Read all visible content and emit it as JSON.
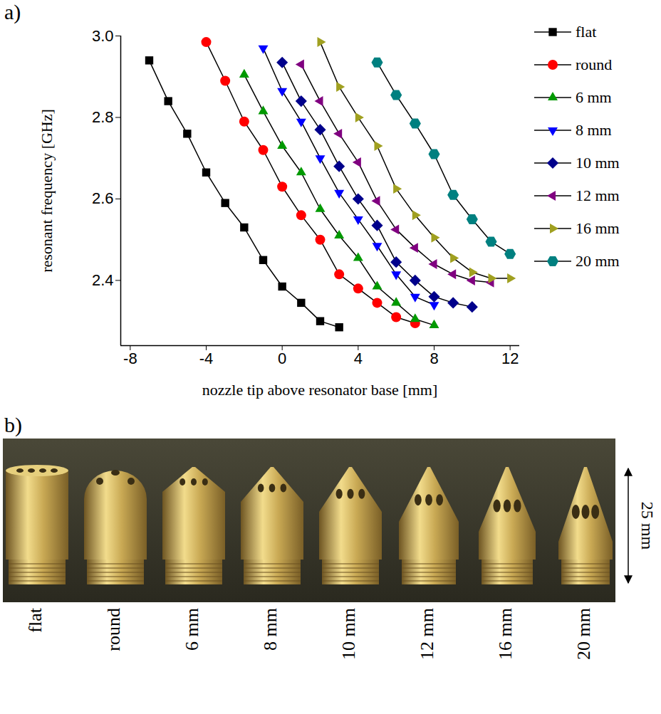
{
  "chart_data": {
    "type": "line",
    "panel_label": "a)",
    "xlabel": "nozzle tip above resonator base [mm]",
    "ylabel": "resonant frequency [GHz]",
    "xlim": [
      -8.5,
      12.5
    ],
    "xticks": [
      -8,
      -4,
      0,
      4,
      8,
      12
    ],
    "ylim": [
      2.24,
      3.0
    ],
    "yticks": [
      2.4,
      2.6,
      2.8,
      {
        "value": 3.0,
        "label": "3.0"
      }
    ],
    "grid": false,
    "legend": "right",
    "line_style": "solid",
    "series": [
      {
        "name": "flat",
        "color": "#000000",
        "marker": "square",
        "x": [
          -7,
          -6,
          -5,
          -4,
          -3,
          -2,
          -1,
          0,
          1,
          2,
          3
        ],
        "values": [
          2.94,
          2.84,
          2.76,
          2.665,
          2.59,
          2.53,
          2.45,
          2.385,
          2.345,
          2.3,
          2.285
        ]
      },
      {
        "name": "round",
        "color": "#ff0000",
        "marker": "circle",
        "x": [
          -4,
          -3,
          -2,
          -1,
          0,
          1,
          2,
          3,
          4,
          5,
          6,
          7
        ],
        "values": [
          2.985,
          2.89,
          2.79,
          2.72,
          2.63,
          2.56,
          2.5,
          2.415,
          2.38,
          2.345,
          2.31,
          2.295
        ]
      },
      {
        "name": "6 mm",
        "color": "#009900",
        "marker": "triangle-up",
        "x": [
          -2,
          -1,
          0,
          1,
          2,
          3,
          4,
          5,
          6,
          7,
          8
        ],
        "values": [
          2.905,
          2.815,
          2.73,
          2.665,
          2.575,
          2.51,
          2.455,
          2.385,
          2.345,
          2.305,
          2.29
        ]
      },
      {
        "name": "8 mm",
        "color": "#0000ff",
        "marker": "triangle-down",
        "x": [
          -1,
          0,
          1,
          2,
          3,
          4,
          5,
          6,
          7,
          8
        ],
        "values": [
          2.97,
          2.865,
          2.79,
          2.7,
          2.615,
          2.55,
          2.485,
          2.415,
          2.36,
          2.34
        ]
      },
      {
        "name": "10 mm",
        "color": "#00008b",
        "marker": "diamond",
        "x": [
          0,
          1,
          2,
          3,
          4,
          5,
          6,
          7,
          8,
          9,
          10
        ],
        "values": [
          2.935,
          2.84,
          2.77,
          2.68,
          2.6,
          2.535,
          2.445,
          2.4,
          2.36,
          2.345,
          2.335
        ]
      },
      {
        "name": "12 mm",
        "color": "#800080",
        "marker": "triangle-left",
        "x": [
          1,
          2,
          3,
          4,
          5,
          6,
          7,
          8,
          9,
          10,
          11
        ],
        "values": [
          2.93,
          2.84,
          2.76,
          2.69,
          2.595,
          2.525,
          2.48,
          2.44,
          2.415,
          2.4,
          2.395
        ]
      },
      {
        "name": "16 mm",
        "color": "#a0a020",
        "marker": "triangle-right",
        "x": [
          2,
          3,
          4,
          5,
          6,
          7,
          8,
          9,
          10,
          11,
          12
        ],
        "values": [
          2.985,
          2.875,
          2.8,
          2.73,
          2.625,
          2.56,
          2.505,
          2.455,
          2.42,
          2.405,
          2.405
        ]
      },
      {
        "name": "20 mm",
        "color": "#008080",
        "marker": "hexagon",
        "x": [
          5,
          6,
          7,
          8,
          9,
          10,
          11,
          12
        ],
        "values": [
          2.935,
          2.855,
          2.785,
          2.71,
          2.61,
          2.55,
          2.495,
          2.465
        ]
      }
    ]
  },
  "photo": {
    "panel_label": "b)",
    "labels": [
      "flat",
      "round",
      "6 mm",
      "8 mm",
      "10 mm",
      "12 mm",
      "16 mm",
      "20 mm"
    ],
    "scale_label": "25 mm"
  }
}
